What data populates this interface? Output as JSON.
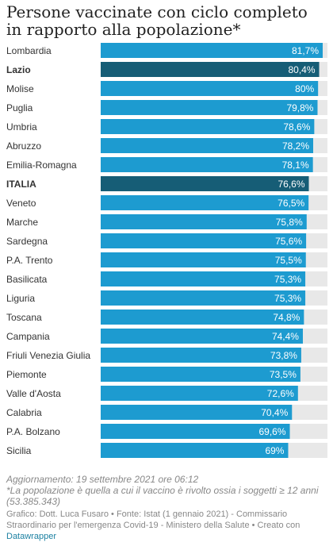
{
  "title": "Persone vaccinate con ciclo completo in rapporto alla popolazione*",
  "chart_data": {
    "type": "bar",
    "orientation": "horizontal",
    "title": "Persone vaccinate con ciclo completo in rapporto alla popolazione*",
    "categories": [
      "Lombardia",
      "Lazio",
      "Molise",
      "Puglia",
      "Umbria",
      "Abruzzo",
      "Emilia-Romagna",
      "ITALIA",
      "Veneto",
      "Marche",
      "Sardegna",
      "P.A. Trento",
      "Basilicata",
      "Liguria",
      "Toscana",
      "Campania",
      "Friuli Venezia Giulia",
      "Piemonte",
      "Valle d'Aosta",
      "Calabria",
      "P.A. Bolzano",
      "Sicilia"
    ],
    "values": [
      81.7,
      80.4,
      80,
      79.8,
      78.6,
      78.2,
      78.1,
      76.6,
      76.5,
      75.8,
      75.6,
      75.5,
      75.3,
      75.3,
      74.8,
      74.4,
      73.8,
      73.5,
      72.6,
      70.4,
      69.6,
      69
    ],
    "value_labels": [
      "81,7%",
      "80,4%",
      "80%",
      "79,8%",
      "78,6%",
      "78,2%",
      "78,1%",
      "76,6%",
      "76,5%",
      "75,8%",
      "75,6%",
      "75,5%",
      "75,3%",
      "75,3%",
      "74,8%",
      "74,4%",
      "73,8%",
      "73,5%",
      "72,6%",
      "70,4%",
      "69,6%",
      "69%"
    ],
    "highlighted": [
      "Lazio",
      "ITALIA"
    ],
    "xlim": [
      0,
      81.7
    ],
    "grid": false,
    "legend": "none",
    "colors": {
      "bar": "#1d9bd0",
      "highlight": "#165d76",
      "track": "#e8e8e8"
    }
  },
  "notes": {
    "updated": "Aggiornamento: 19 settembre 2021 ore 06:12",
    "footnote": "*La popolazione è quella a cui il vaccino è rivolto ossia i soggetti ≥ 12 anni (53.385.343)",
    "source": "Grafico: Dott. Luca Fusaro • Fonte: Istat (1 gennaio 2021) - Commissario Straordinario per l'emergenza Covid-19 - Ministero della Salute • Creato con",
    "link": "Datawrapper"
  }
}
